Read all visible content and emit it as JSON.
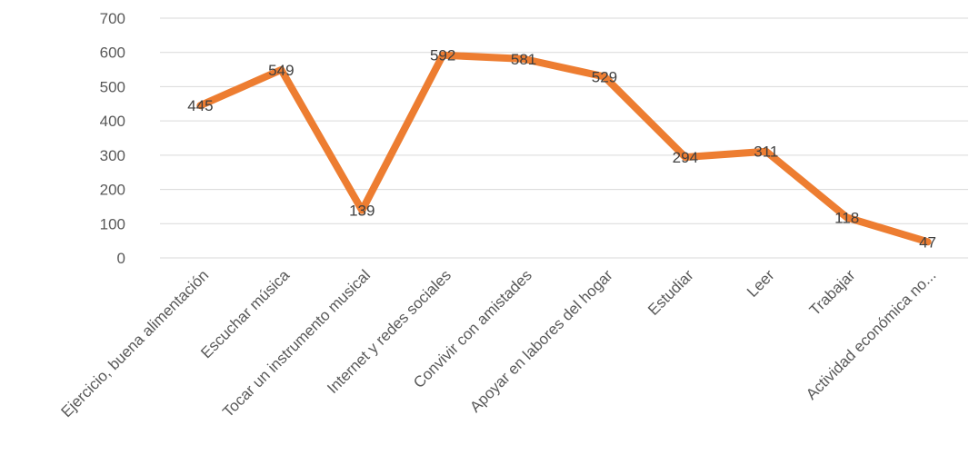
{
  "chart_data": {
    "type": "line",
    "title": "",
    "xlabel": "",
    "ylabel": "",
    "ylim": [
      0,
      700
    ],
    "yticks": [
      0,
      100,
      200,
      300,
      400,
      500,
      600,
      700
    ],
    "grid": true,
    "legend": "none",
    "categories": [
      "Ejercicio, buena alimentación",
      "Escuchar música",
      "Tocar un instrumento musical",
      "Internet y redes sociales",
      "Convivir con amistades",
      "Apoyar en labores del hogar",
      "Estudiar",
      "Leer",
      "Trabajar",
      "Actividad económica no..."
    ],
    "series": [
      {
        "values": [
          445,
          549,
          139,
          592,
          581,
          529,
          294,
          311,
          118,
          47
        ]
      }
    ],
    "colors": {
      "line": "#ED7D31",
      "grid": "#D9D9D9",
      "text": "#595959"
    }
  }
}
